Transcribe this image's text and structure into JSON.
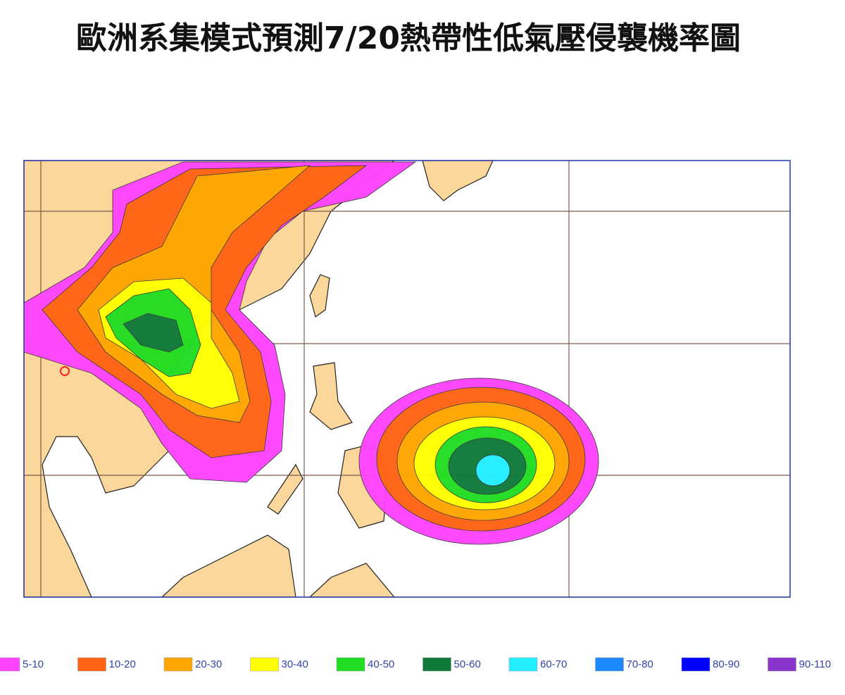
{
  "title": "歐洲系集模式預測7/20熱帶性低氣壓侵襲機率圖",
  "legend": [
    {
      "label": "5-10",
      "color": "#ff44ff"
    },
    {
      "label": "10-20",
      "color": "#ff6414"
    },
    {
      "label": "20-30",
      "color": "#ffa500"
    },
    {
      "label": "30-40",
      "color": "#ffff00"
    },
    {
      "label": "40-50",
      "color": "#22dd22"
    },
    {
      "label": "50-60",
      "color": "#0f7a3a"
    },
    {
      "label": "60-70",
      "color": "#22eeff"
    },
    {
      "label": "70-80",
      "color": "#1e88ff"
    },
    {
      "label": "80-90",
      "color": "#0000ff"
    },
    {
      "label": "90-110",
      "color": "#8833cc"
    }
  ]
}
